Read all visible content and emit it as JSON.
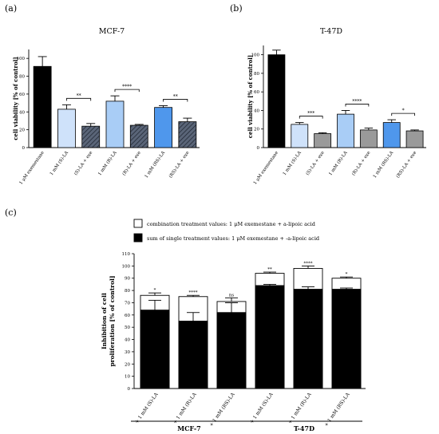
{
  "panels": {
    "a": {
      "label": "(a)",
      "title": "MCF-7"
    },
    "b": {
      "label": "(b)",
      "title": "T-47D"
    },
    "c": {
      "label": "(c)"
    }
  },
  "colors": {
    "black": "#000000",
    "light_blue": "#cfe2fa",
    "mid_blue": "#a9cdf6",
    "blue": "#4f97ec",
    "hatch": "#3f4a5c",
    "grey": "#9a9a9a"
  },
  "chart_data": [
    {
      "type": "bar",
      "panel": "a",
      "title": "MCF-7",
      "ylabel": "cell viability [% of control]",
      "ylim": [
        0,
        110
      ],
      "yticks": [
        0,
        20,
        40,
        60,
        80,
        100
      ],
      "categories": [
        "1 μM exemestane",
        "1 mM (S)-LA",
        "(S)-LA + exe",
        "1 mM (R)-LA",
        "(R)-LA + exe",
        "1 mM (RS)-LA",
        "(RS)-LA + exe"
      ],
      "values": [
        91,
        43,
        24,
        52,
        25,
        45,
        29
      ],
      "errors": [
        11,
        5,
        3,
        6,
        1,
        2,
        4
      ],
      "fills": [
        "black",
        "light_blue",
        "hatch",
        "mid_blue",
        "hatch",
        "blue",
        "hatch"
      ],
      "significance": [
        {
          "bars": [
            1,
            2
          ],
          "label": "**"
        },
        {
          "bars": [
            3,
            4
          ],
          "label": "****"
        },
        {
          "bars": [
            5,
            6
          ],
          "label": "**"
        }
      ]
    },
    {
      "type": "bar",
      "panel": "b",
      "title": "T-47D",
      "ylabel": "cell viability [% of control]",
      "ylim": [
        0,
        110
      ],
      "yticks": [
        0,
        20,
        40,
        60,
        80,
        100
      ],
      "categories": [
        "1 μM exemestane",
        "1 mM (S)-LA",
        "(S)-LA + exe",
        "1 mM (R)-LA",
        "(R)-LA + exe",
        "1 mM (RS)-LA",
        "(RS)-LA + exe"
      ],
      "values": [
        100,
        25,
        15,
        36,
        19,
        27,
        18
      ],
      "errors": [
        5,
        2,
        1,
        4,
        2,
        3,
        1
      ],
      "fills": [
        "black",
        "light_blue",
        "grey",
        "mid_blue",
        "grey",
        "blue",
        "grey"
      ],
      "significance": [
        {
          "bars": [
            1,
            2
          ],
          "label": "***"
        },
        {
          "bars": [
            3,
            4
          ],
          "label": "****"
        },
        {
          "bars": [
            5,
            6
          ],
          "label": "*"
        }
      ]
    },
    {
      "type": "bar",
      "panel": "c",
      "stacked_overlay": true,
      "ylabel": "Inhibition of cell proliferation [% of control]",
      "ylim": [
        0,
        110
      ],
      "yticks": [
        0,
        10,
        20,
        30,
        40,
        50,
        60,
        70,
        80,
        90,
        100,
        110
      ],
      "categories": [
        "+ 1 mM (S)-LA",
        "+ 1 mM (R)-LA",
        "+ 1 mM (RS)-LA",
        "+ 1 mM (S)-LA",
        "+ 1 mM (R)-LA",
        "+ 1 mM (RS)-LA"
      ],
      "groups": [
        {
          "label": "MCF-7",
          "bars": [
            0,
            1,
            2
          ]
        },
        {
          "label": "T-47D",
          "bars": [
            3,
            4,
            5
          ]
        }
      ],
      "legend": {
        "placement": "top",
        "entries": [
          "combination treatment values: 1 μM exemestane + a-lipoic acid",
          "sum of single treatment values: 1 μM exemestane + -a-lipoic acid"
        ]
      },
      "series": [
        {
          "values": [
            76,
            75,
            71,
            94,
            98,
            90
          ],
          "errors": [
            2,
            1,
            3,
            1,
            2,
            1
          ],
          "fill": "#ffffff"
        },
        {
          "values": [
            64,
            55,
            62,
            84,
            81,
            81
          ],
          "errors": [
            8,
            7,
            8,
            1,
            2,
            1
          ],
          "fill": "#000000"
        }
      ],
      "significance": [
        "*",
        "****",
        "ns",
        "**",
        "****",
        "*"
      ]
    }
  ]
}
